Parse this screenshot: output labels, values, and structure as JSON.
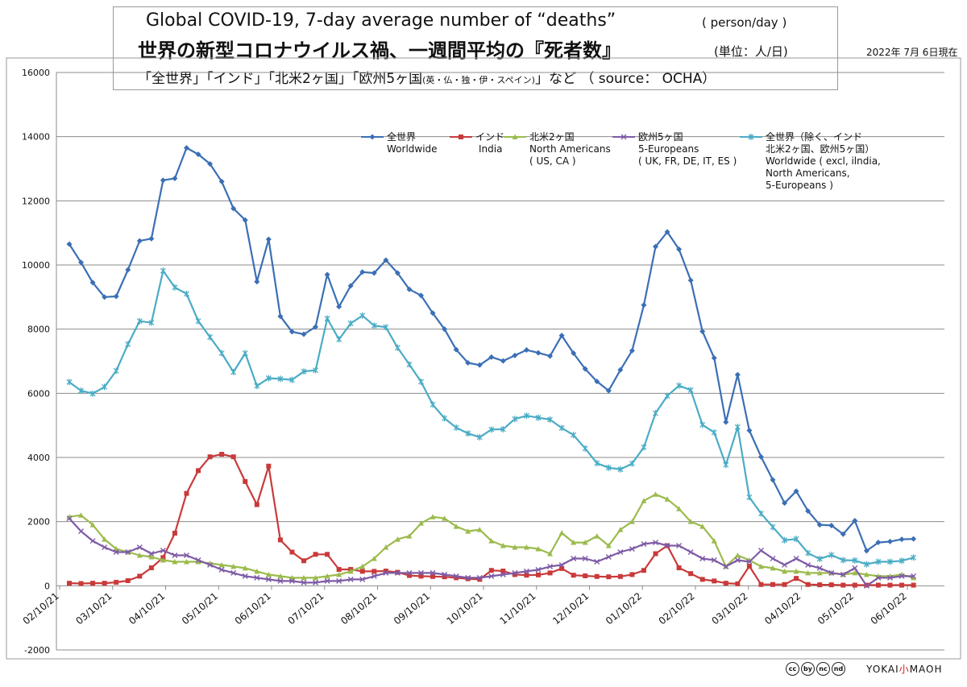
{
  "header": {
    "title_en": "Global COVID-19, 7-day average number of “deaths”",
    "unit_en": "( person/day )",
    "title_jp": "世界の新型コロナウイルス禍、一週間平均の『死者数』",
    "unit_jp": "(単位：人/日)",
    "subtitle_main": "「全世界」「インド」「北米2ヶ国」「欧州5ヶ国",
    "subtitle_small": "(英・仏・独・伊・スペイン)",
    "subtitle_tail": "」など （ source： OCHA）",
    "as_of": "2022年 7月 6日現在"
  },
  "footer": {
    "cc_icons": [
      "cc",
      "by",
      "nc",
      "nd"
    ],
    "brand_left": "YOKAI",
    "brand_mid": "小",
    "brand_right": "MAOH"
  },
  "chart_data": {
    "type": "line",
    "ylim": [
      -2000,
      16000
    ],
    "yticks": [
      -2000,
      0,
      2000,
      4000,
      6000,
      8000,
      10000,
      12000,
      14000,
      16000
    ],
    "xticks": [
      "02/10/21",
      "03/10/21",
      "04/10/21",
      "05/10/21",
      "06/10/21",
      "07/10/21",
      "08/10/21",
      "09/10/21",
      "10/10/21",
      "11/10/21",
      "12/10/21",
      "01/10/22",
      "02/10/22",
      "03/10/22",
      "04/10/22",
      "05/10/22",
      "06/10/22"
    ],
    "grid": true,
    "legend_position": "top-right",
    "series": [
      {
        "name": "全世界",
        "name_en": "Worldwide",
        "color": "#3b6fb5",
        "marker": "diamond",
        "values": [
          10650,
          10080,
          9450,
          9000,
          9020,
          9850,
          10750,
          10820,
          12640,
          12700,
          13650,
          13450,
          13150,
          12600,
          11760,
          11400,
          9480,
          10800,
          8400,
          7920,
          7840,
          8070,
          9700,
          8700,
          9350,
          9780,
          9750,
          10150,
          9750,
          9240,
          9050,
          8500,
          8000,
          7360,
          6950,
          6880,
          7130,
          7010,
          7180,
          7350,
          7260,
          7160,
          7800,
          7250,
          6760,
          6370,
          6080,
          6730,
          7330,
          8750,
          10570,
          11030,
          10490,
          9520,
          7930,
          7100,
          5100,
          6580,
          4840,
          4020,
          3300,
          2580,
          2950,
          2330,
          1900,
          1880,
          1610,
          2030,
          1090,
          1350,
          1380,
          1450,
          1460
        ]
      },
      {
        "name": "インド",
        "name_en": "India",
        "color": "#c93a3a",
        "marker": "square",
        "values": [
          80,
          70,
          80,
          80,
          110,
          160,
          300,
          560,
          880,
          1640,
          2880,
          3590,
          4020,
          4100,
          4020,
          3250,
          2530,
          3730,
          1430,
          1050,
          780,
          980,
          980,
          510,
          510,
          450,
          450,
          460,
          420,
          320,
          300,
          290,
          280,
          250,
          220,
          200,
          480,
          460,
          350,
          330,
          340,
          400,
          540,
          330,
          310,
          290,
          280,
          290,
          350,
          480,
          1000,
          1250,
          560,
          380,
          200,
          150,
          80,
          60,
          610,
          40,
          40,
          40,
          230,
          40,
          30,
          30,
          20,
          20,
          20,
          20,
          20,
          20,
          20
        ]
      },
      {
        "name": "北米2ヶ国",
        "name_en": "North Americans",
        "name_sub": "( US, CA )",
        "color": "#9bbb4c",
        "marker": "triangle",
        "values": [
          2150,
          2200,
          1900,
          1450,
          1150,
          1050,
          950,
          900,
          800,
          750,
          750,
          750,
          700,
          650,
          600,
          550,
          450,
          350,
          300,
          250,
          250,
          250,
          300,
          350,
          450,
          600,
          850,
          1200,
          1450,
          1550,
          1950,
          2150,
          2100,
          1850,
          1700,
          1750,
          1400,
          1250,
          1200,
          1200,
          1150,
          1000,
          1650,
          1350,
          1350,
          1550,
          1250,
          1750,
          2000,
          2650,
          2850,
          2700,
          2400,
          2000,
          1850,
          1400,
          600,
          950,
          800,
          600,
          550,
          450,
          450,
          400,
          400,
          400,
          350,
          400,
          350,
          300,
          300,
          350,
          250
        ]
      },
      {
        "name": "欧州5ヶ国",
        "name_en": "5-Europeans",
        "name_sub": "( UK, FR, DE, IT, ES )",
        "color": "#7e5ba6",
        "marker": "x",
        "values": [
          2100,
          1700,
          1400,
          1200,
          1050,
          1050,
          1200,
          1000,
          1100,
          950,
          950,
          800,
          650,
          500,
          400,
          300,
          250,
          200,
          150,
          150,
          100,
          100,
          150,
          150,
          200,
          200,
          300,
          400,
          400,
          400,
          400,
          400,
          350,
          300,
          250,
          250,
          300,
          350,
          400,
          450,
          500,
          600,
          650,
          850,
          850,
          750,
          900,
          1050,
          1150,
          1300,
          1350,
          1250,
          1250,
          1050,
          850,
          800,
          600,
          800,
          750,
          1100,
          850,
          650,
          850,
          650,
          550,
          400,
          350,
          550,
          0,
          250,
          250,
          300,
          300
        ]
      },
      {
        "name": "全世界（除く、インド 北米2ヶ国、欧州5ヶ国）",
        "name_en": "Worldwide ( excl, ilndia, North Americans, 5-Europeans )",
        "color": "#4aacc5",
        "marker": "asterisk",
        "values": [
          6350,
          6080,
          5990,
          6200,
          6700,
          7530,
          8250,
          8200,
          9820,
          9300,
          9100,
          8250,
          7750,
          7250,
          6660,
          7250,
          6230,
          6470,
          6450,
          6420,
          6680,
          6720,
          8330,
          7680,
          8180,
          8420,
          8110,
          8060,
          7420,
          6900,
          6360,
          5650,
          5220,
          4930,
          4750,
          4630,
          4870,
          4880,
          5200,
          5300,
          5240,
          5180,
          4920,
          4700,
          4280,
          3820,
          3680,
          3630,
          3810,
          4320,
          5380,
          5920,
          6240,
          6100,
          5020,
          4780,
          3770,
          4950,
          2760,
          2250,
          1830,
          1420,
          1460,
          1020,
          840,
          960,
          800,
          790,
          670,
          750,
          750,
          780,
          880
        ]
      }
    ]
  }
}
